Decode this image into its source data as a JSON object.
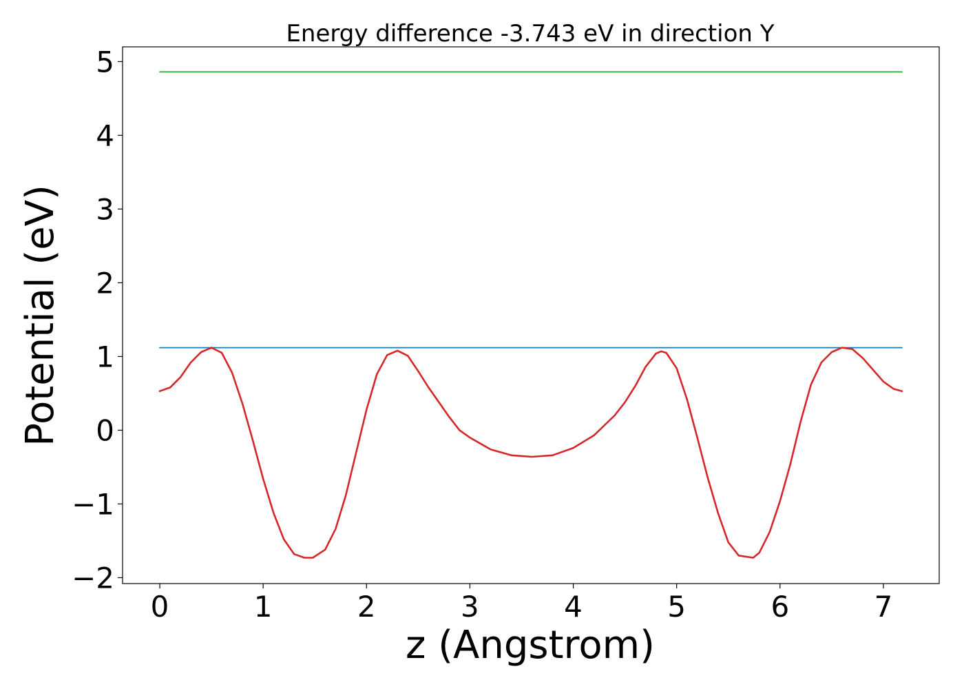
{
  "chart_data": {
    "type": "line",
    "title": "Energy difference -3.743 eV in direction Y",
    "xlabel": "z (Angstrom)",
    "ylabel": "Potential (eV)",
    "xlim": [
      -0.36,
      7.54
    ],
    "ylim": [
      -2.08,
      5.2
    ],
    "xticks": [
      0,
      1,
      2,
      3,
      4,
      5,
      6,
      7
    ],
    "xtick_labels": [
      "0",
      "1",
      "2",
      "3",
      "4",
      "5",
      "6",
      "7"
    ],
    "yticks": [
      -2,
      -1,
      0,
      1,
      2,
      3,
      4,
      5
    ],
    "ytick_labels": [
      "−2",
      "−1",
      "0",
      "1",
      "2",
      "3",
      "4",
      "5"
    ],
    "grid": false,
    "series": [
      {
        "color": "#2ca02c",
        "x": [
          0,
          7.18
        ],
        "y": [
          4.86,
          4.86
        ]
      },
      {
        "color": "#1f77b4",
        "x": [
          0,
          7.18
        ],
        "y": [
          1.12,
          1.12
        ]
      },
      {
        "color": "#d62728",
        "x": [
          0.0,
          0.1,
          0.2,
          0.3,
          0.4,
          0.5,
          0.6,
          0.7,
          0.8,
          0.9,
          1.0,
          1.1,
          1.2,
          1.3,
          1.4,
          1.48,
          1.6,
          1.7,
          1.8,
          1.9,
          2.0,
          2.1,
          2.2,
          2.3,
          2.4,
          2.5,
          2.6,
          2.7,
          2.8,
          2.9,
          3.0,
          3.2,
          3.4,
          3.6,
          3.8,
          4.0,
          4.2,
          4.4,
          4.5,
          4.6,
          4.7,
          4.8,
          4.85,
          4.9,
          5.0,
          5.1,
          5.2,
          5.3,
          5.4,
          5.5,
          5.6,
          5.74,
          5.8,
          5.9,
          6.0,
          6.1,
          6.2,
          6.3,
          6.4,
          6.5,
          6.6,
          6.7,
          6.8,
          6.9,
          7.0,
          7.1,
          7.18
        ],
        "y": [
          0.53,
          0.58,
          0.72,
          0.92,
          1.06,
          1.12,
          1.05,
          0.78,
          0.36,
          -0.14,
          -0.66,
          -1.12,
          -1.48,
          -1.68,
          -1.73,
          -1.73,
          -1.62,
          -1.34,
          -0.88,
          -0.3,
          0.28,
          0.76,
          1.02,
          1.08,
          1.01,
          0.8,
          0.58,
          0.38,
          0.18,
          0.0,
          -0.1,
          -0.26,
          -0.34,
          -0.36,
          -0.34,
          -0.24,
          -0.07,
          0.2,
          0.38,
          0.6,
          0.86,
          1.04,
          1.07,
          1.05,
          0.84,
          0.42,
          -0.1,
          -0.64,
          -1.12,
          -1.52,
          -1.7,
          -1.73,
          -1.66,
          -1.38,
          -0.96,
          -0.46,
          0.12,
          0.62,
          0.92,
          1.06,
          1.12,
          1.1,
          0.98,
          0.82,
          0.66,
          0.56,
          0.53
        ]
      }
    ]
  }
}
